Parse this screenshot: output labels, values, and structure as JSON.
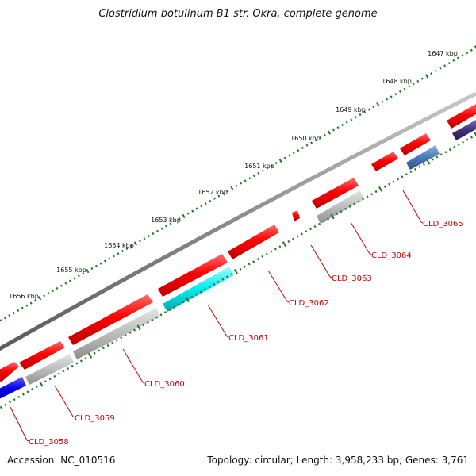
{
  "title": "Clostridium botulinum B1 str. Okra, complete genome",
  "footer": {
    "accession": "Accession: NC_010516",
    "topology": "Topology: circular; Length: 3,958,233 bp; Genes: 3,761"
  },
  "scale": {
    "unit": "kbp",
    "ticks": [
      "1647 kbp",
      "1648 kbp",
      "1649 kbp",
      "1650 kbp",
      "1651 kbp",
      "1652 kbp",
      "1653 kbp",
      "1654 kbp",
      "1655 kbp",
      "1656 kbp"
    ]
  },
  "colors": {
    "backbone": "#8a8a8a",
    "forward_gene": "#e60000",
    "reverse_gene": "#b4b4b4",
    "highlight_gene": "#00e0e8",
    "blue_gene": "#1010e0",
    "steel_gene": "#4a7ab8",
    "indigo_gene": "#40307a",
    "ticks": "#1e7a1e",
    "label": "#cc0000"
  },
  "gene_labels": [
    "CLD_3058",
    "CLD_3059",
    "CLD_3060",
    "CLD_3061",
    "CLD_3062",
    "CLD_3063",
    "CLD_3064",
    "CLD_3065"
  ]
}
